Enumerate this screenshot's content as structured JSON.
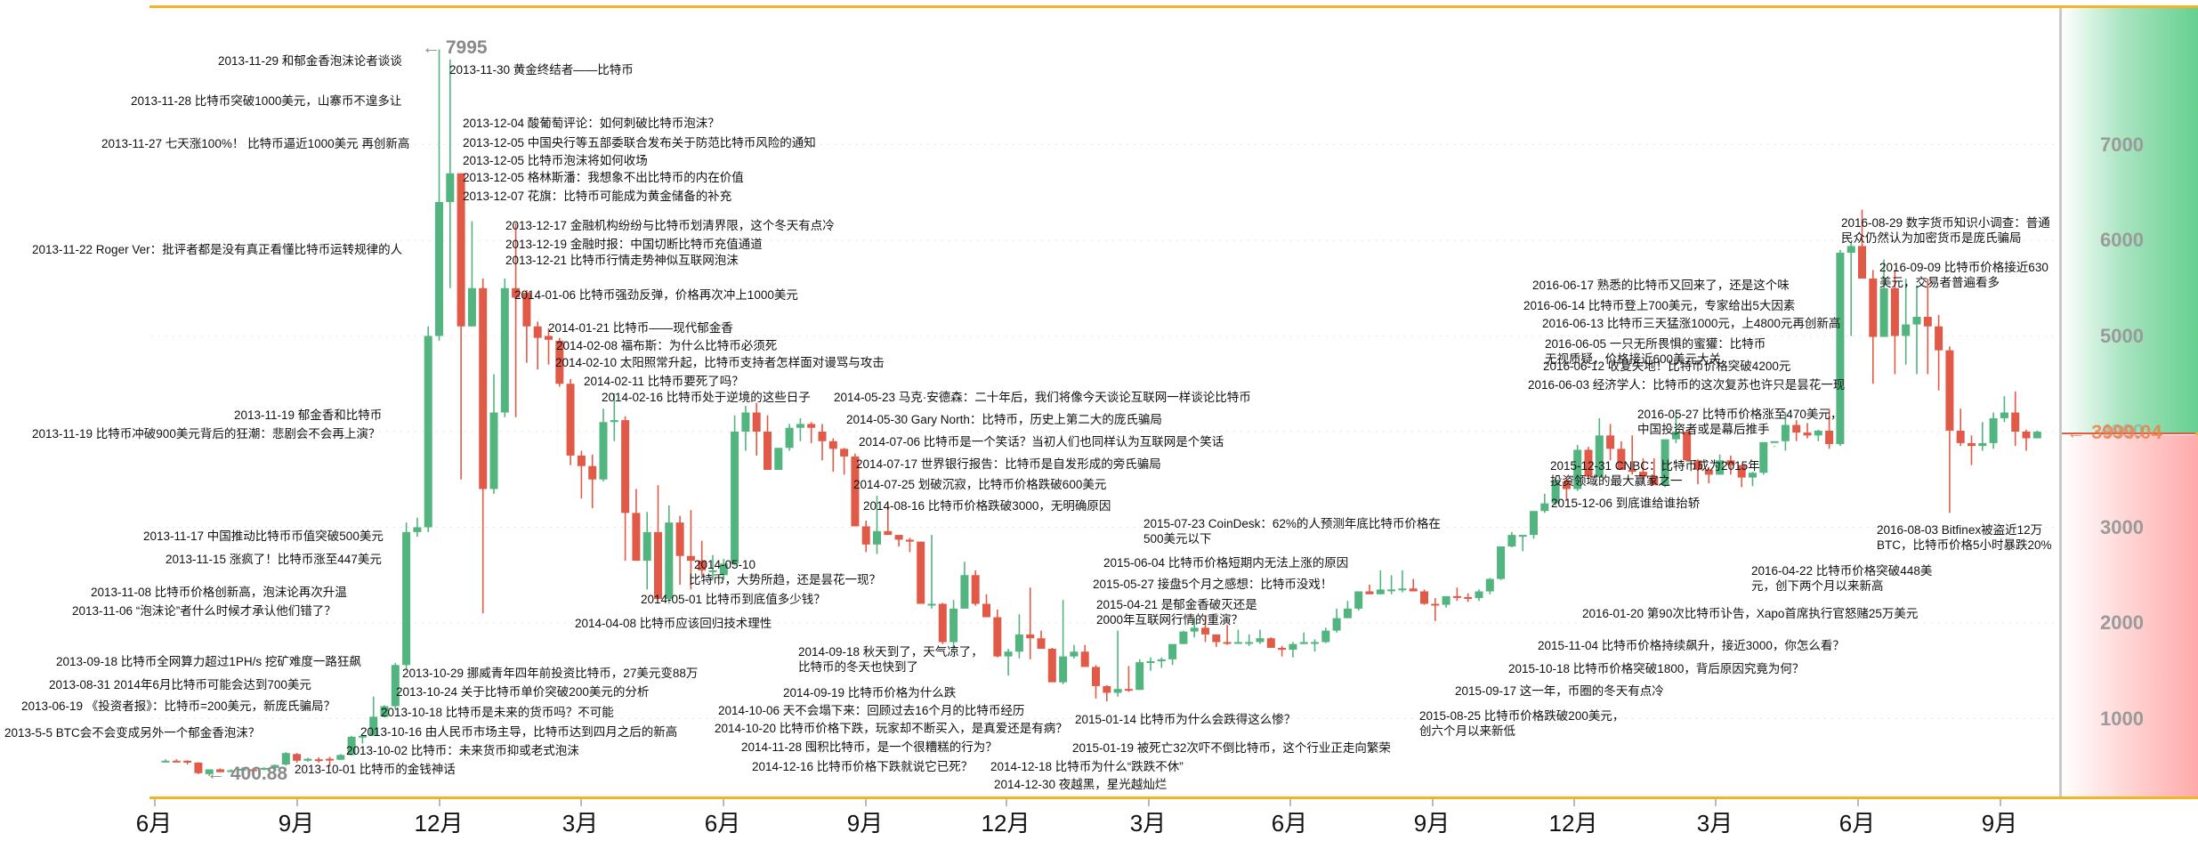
{
  "chart_data": {
    "type": "candlestick",
    "title": "",
    "xlabel": "",
    "ylabel": "",
    "ylim": [
      0,
      8300
    ],
    "yticks": [
      1000,
      2000,
      3000,
      4000,
      5000,
      6000,
      7000
    ],
    "xticks": [
      "6月",
      "9月",
      "12月",
      "3月",
      "6月",
      "9月",
      "12月",
      "3月",
      "6月",
      "9月",
      "12月",
      "3月",
      "6月",
      "9月"
    ],
    "grid": "dotted horizontal",
    "interval": "weekly",
    "max_label": "7995",
    "min_label": "400.88",
    "current_price": "3999.04",
    "colors": {
      "up": "#52b47e",
      "down": "#e05a47",
      "frame": "#f5b324"
    },
    "candles": [
      [
        560,
        575,
        555,
        560
      ],
      [
        560,
        575,
        545,
        550
      ],
      [
        560,
        565,
        520,
        540
      ],
      [
        540,
        545,
        420,
        430
      ],
      [
        420,
        470,
        401,
        470
      ],
      [
        470,
        480,
        440,
        440
      ],
      [
        455,
        470,
        440,
        460
      ],
      [
        460,
        490,
        450,
        475
      ],
      [
        470,
        480,
        460,
        465
      ],
      [
        470,
        490,
        460,
        485
      ],
      [
        485,
        520,
        475,
        515
      ],
      [
        520,
        650,
        510,
        640
      ],
      [
        630,
        640,
        540,
        560
      ],
      [
        560,
        590,
        550,
        580
      ],
      [
        575,
        595,
        540,
        570
      ],
      [
        580,
        600,
        500,
        575
      ],
      [
        570,
        630,
        565,
        620
      ],
      [
        620,
        820,
        615,
        810
      ],
      [
        810,
        830,
        740,
        820
      ],
      [
        820,
        1230,
        820,
        1020
      ],
      [
        1020,
        1140,
        1010,
        1130
      ],
      [
        1130,
        1580,
        1100,
        1560
      ],
      [
        1560,
        3050,
        1520,
        2950
      ],
      [
        2950,
        3100,
        2900,
        3000
      ],
      [
        3000,
        5100,
        2950,
        5000
      ],
      [
        5000,
        7995,
        4950,
        6400
      ],
      [
        6400,
        7890,
        5500,
        6700
      ],
      [
        6700,
        6700,
        3500,
        5100
      ],
      [
        5100,
        6200,
        5100,
        5500
      ],
      [
        5500,
        5600,
        2100,
        3400
      ],
      [
        3400,
        4600,
        3350,
        4200
      ],
      [
        4200,
        5600,
        4150,
        5500
      ],
      [
        5500,
        6180,
        4150,
        5400
      ],
      [
        5450,
        5480,
        4720,
        5100
      ],
      [
        5100,
        5150,
        4650,
        4980
      ],
      [
        5000,
        5080,
        4700,
        4960
      ],
      [
        4950,
        4980,
        4470,
        4500
      ],
      [
        4500,
        4550,
        3650,
        3750
      ],
      [
        3750,
        3800,
        3300,
        3640
      ],
      [
        3640,
        3760,
        3200,
        3500
      ],
      [
        3500,
        4240,
        3480,
        4100
      ],
      [
        4100,
        4400,
        3900,
        4120
      ],
      [
        4120,
        4160,
        2650,
        3150
      ],
      [
        3150,
        3400,
        2950,
        2650
      ],
      [
        2650,
        3160,
        2350,
        2950
      ],
      [
        2950,
        3440,
        2950,
        2250
      ],
      [
        2250,
        3230,
        2200,
        3050
      ],
      [
        3050,
        3120,
        2400,
        2700
      ],
      [
        2700,
        3180,
        2350,
        2650
      ],
      [
        2650,
        2860,
        2500,
        2550
      ],
      [
        2550,
        2710,
        2450,
        2550
      ],
      [
        2500,
        2670,
        2450,
        2620
      ],
      [
        2620,
        4170,
        2600,
        4000
      ],
      [
        4000,
        4270,
        3800,
        4200
      ],
      [
        4200,
        4300,
        3750,
        4000
      ],
      [
        4000,
        4170,
        3700,
        3600
      ],
      [
        3600,
        3830,
        3610,
        3830
      ],
      [
        3830,
        4080,
        3800,
        4040
      ],
      [
        4040,
        4140,
        3900,
        4080
      ],
      [
        4080,
        4100,
        3880,
        4040
      ],
      [
        4000,
        4080,
        3700,
        3900
      ],
      [
        3900,
        3930,
        3580,
        3820
      ],
      [
        3820,
        3830,
        3550,
        3740
      ],
      [
        3740,
        3770,
        3440,
        3010
      ],
      [
        3010,
        3070,
        2740,
        2820
      ],
      [
        2820,
        3330,
        2720,
        2960
      ],
      [
        2960,
        3240,
        2920,
        2920
      ],
      [
        2920,
        2920,
        2800,
        2870
      ],
      [
        2870,
        2890,
        2740,
        2850
      ],
      [
        2850,
        2850,
        2550,
        2200
      ],
      [
        2200,
        2920,
        2150,
        2200
      ],
      [
        2200,
        2210,
        1780,
        1800
      ],
      [
        1800,
        2240,
        1700,
        2150
      ],
      [
        2150,
        2640,
        2200,
        2500
      ],
      [
        2500,
        2550,
        2180,
        2200
      ],
      [
        2200,
        2300,
        2060,
        2060
      ],
      [
        2060,
        2140,
        1640,
        1650
      ],
      [
        1650,
        1730,
        1450,
        1700
      ],
      [
        1700,
        2090,
        1630,
        1880
      ],
      [
        1880,
        2370,
        1620,
        1840
      ],
      [
        1840,
        1920,
        1750,
        1730
      ],
      [
        1730,
        1740,
        1450,
        1380
      ],
      [
        1380,
        2240,
        1360,
        1650
      ],
      [
        1650,
        1770,
        1630,
        1700
      ],
      [
        1700,
        1770,
        1600,
        1540
      ],
      [
        1540,
        1560,
        1210,
        1340
      ],
      [
        1340,
        1350,
        1180,
        1270
      ],
      [
        1270,
        1920,
        1230,
        1310
      ],
      [
        1310,
        1550,
        1280,
        1300
      ],
      [
        1300,
        1620,
        1300,
        1590
      ],
      [
        1590,
        1640,
        1500,
        1600
      ],
      [
        1600,
        1640,
        1530,
        1620
      ],
      [
        1620,
        1760,
        1560,
        1780
      ],
      [
        1780,
        1920,
        1780,
        1910
      ],
      [
        1910,
        2050,
        1850,
        1950
      ],
      [
        1950,
        2080,
        1800,
        1880
      ],
      [
        1880,
        1880,
        1750,
        1800
      ],
      [
        1800,
        1980,
        1770,
        1790
      ],
      [
        1790,
        1930,
        1800,
        1800
      ],
      [
        1800,
        1880,
        1760,
        1800
      ],
      [
        1800,
        1930,
        1780,
        1840
      ],
      [
        1840,
        1850,
        1740,
        1740
      ],
      [
        1740,
        1760,
        1650,
        1720
      ],
      [
        1720,
        1800,
        1640,
        1780
      ],
      [
        1780,
        1900,
        1780,
        1800
      ],
      [
        1800,
        1830,
        1700,
        1800
      ],
      [
        1800,
        1950,
        1790,
        1920
      ],
      [
        1920,
        2150,
        1900,
        2050
      ],
      [
        2050,
        2230,
        2050,
        2150
      ],
      [
        2150,
        2330,
        2130,
        2330
      ],
      [
        2330,
        2400,
        2300,
        2300
      ],
      [
        2300,
        2550,
        2300,
        2350
      ],
      [
        2350,
        2500,
        2300,
        2350
      ],
      [
        2350,
        2550,
        2320,
        2360
      ],
      [
        2360,
        2460,
        2350,
        2330
      ],
      [
        2330,
        2350,
        2190,
        2200
      ],
      [
        2200,
        2260,
        2020,
        2190
      ],
      [
        2190,
        2270,
        2160,
        2280
      ],
      [
        2280,
        2370,
        2230,
        2270
      ],
      [
        2270,
        2310,
        2220,
        2260
      ],
      [
        2260,
        2350,
        2230,
        2330
      ],
      [
        2330,
        2470,
        2300,
        2460
      ],
      [
        2460,
        2800,
        2450,
        2800
      ],
      [
        2800,
        2950,
        2790,
        2920
      ],
      [
        2920,
        2910,
        2750,
        2920
      ],
      [
        2920,
        3100,
        2880,
        3170
      ],
      [
        3170,
        3350,
        3150,
        3250
      ],
      [
        3250,
        3520,
        3230,
        3480
      ],
      [
        3480,
        3530,
        3280,
        3400
      ],
      [
        3400,
        3860,
        3380,
        3810
      ],
      [
        3810,
        3840,
        3540,
        3530
      ],
      [
        3530,
        4140,
        3520,
        3960
      ],
      [
        3960,
        4080,
        3700,
        3820
      ],
      [
        3820,
        3900,
        3700,
        3600
      ],
      [
        3600,
        3960,
        3550,
        3580
      ],
      [
        3580,
        3720,
        3480,
        3530
      ],
      [
        3530,
        3720,
        3480,
        3440
      ],
      [
        3440,
        3870,
        3420,
        3920
      ],
      [
        3920,
        4180,
        3880,
        4000
      ],
      [
        4000,
        4010,
        3860,
        3700
      ],
      [
        3700,
        3710,
        3450,
        3600
      ],
      [
        3600,
        3630,
        3460,
        3550
      ],
      [
        3550,
        3760,
        3550,
        3700
      ],
      [
        3700,
        3750,
        3550,
        3650
      ],
      [
        3650,
        3650,
        3420,
        3520
      ],
      [
        3520,
        3580,
        3430,
        3570
      ],
      [
        3570,
        3890,
        3550,
        3890
      ],
      [
        3890,
        3850,
        3840,
        3900
      ],
      [
        3900,
        4200,
        3800,
        4070
      ],
      [
        4070,
        4120,
        3900,
        3990
      ],
      [
        3990,
        4090,
        3930,
        3960
      ],
      [
        3960,
        4020,
        3900,
        4010
      ],
      [
        4010,
        4240,
        3820,
        3870
      ],
      [
        3870,
        5900,
        3850,
        5870
      ],
      [
        5870,
        5980,
        5000,
        5940
      ],
      [
        5940,
        6320,
        5900,
        5600
      ],
      [
        5600,
        5690,
        4500,
        4990
      ],
      [
        4990,
        5800,
        4990,
        5500
      ],
      [
        5500,
        5690,
        4600,
        5000
      ],
      [
        5000,
        5600,
        4700,
        5120
      ],
      [
        5120,
        5530,
        4600,
        5200
      ],
      [
        5200,
        5600,
        4600,
        5100
      ],
      [
        5100,
        5220,
        4430,
        4850
      ],
      [
        4850,
        4890,
        3150,
        4010
      ],
      [
        4010,
        4240,
        3850,
        3880
      ],
      [
        3880,
        3960,
        3650,
        3850
      ],
      [
        3850,
        4100,
        3800,
        3880
      ],
      [
        3880,
        4200,
        3820,
        4140
      ],
      [
        4140,
        4370,
        4100,
        4200
      ],
      [
        4200,
        4420,
        3850,
        4000
      ],
      [
        4000,
        4020,
        3800,
        3930
      ],
      [
        3930,
        4010,
        3990,
        3999.04
      ]
    ]
  },
  "y_axis": {
    "labels": [
      "7000",
      "6000",
      "5000",
      "4000",
      "3000",
      "2000",
      "1000"
    ],
    "current_price_label": "3999.04"
  },
  "x_axis": {
    "labels": [
      "6月",
      "9月",
      "12月",
      "3月",
      "6月",
      "9月",
      "12月",
      "3月",
      "6月",
      "9月",
      "12月",
      "3月",
      "6月",
      "9月"
    ]
  },
  "extremes": {
    "max": "← 7995",
    "min": "← 400.88"
  },
  "annotations": [
    {
      "date": "2013-11-29",
      "text": "和郁金香泡沫论者谈谈"
    },
    {
      "date": "2013-11-28",
      "text": "比特币突破1000美元，山寨币不遑多让"
    },
    {
      "date": "2013-11-27",
      "text": "七天涨100%！ 比特币逼近1000美元 再创新高"
    },
    {
      "date": "2013-11-22",
      "text": "Roger Ver：批评者都是没有真正看懂比特币运转规律的人"
    },
    {
      "date": "2013-11-19",
      "text": "郁金香和比特币"
    },
    {
      "date": "2013-11-19",
      "text": "比特币冲破900美元背后的狂潮：悲剧会不会再上演？"
    },
    {
      "date": "2013-11-17",
      "text": "中国推动比特币币值突破500美元"
    },
    {
      "date": "2013-11-15",
      "text": "涨疯了！比特币涨至447美元"
    },
    {
      "date": "2013-11-08",
      "text": "比特币价格创新高，泡沫论再次升温"
    },
    {
      "date": "2013-11-06",
      "text": "“泡沫论”者什么时候才承认他们错了？"
    },
    {
      "date": "2013-09-18",
      "text": "比特币全网算力超过1PH/s 挖矿难度一路狂飙"
    },
    {
      "date": "2013-08-31",
      "text": "2014年6月比特币可能会达到700美元"
    },
    {
      "date": "2013-06-19",
      "text": "《投资者报》：比特币=200美元，新庞氏骗局？"
    },
    {
      "date": "2013-5-5",
      "text": "BTC会不会变成另外一个郁金香泡沫？"
    },
    {
      "date": "2013-11-30",
      "text": "黄金终结者——比特币"
    },
    {
      "date": "2013-12-04",
      "text": "酸葡萄评论：如何刺破比特币泡沫？"
    },
    {
      "date": "2013-12-05",
      "text": "中国央行等五部委联合发布关于防范比特币风险的通知"
    },
    {
      "date": "2013-12-05",
      "text": "比特币泡沫将如何收场"
    },
    {
      "date": "2013-12-05",
      "text": "格林斯潘：我想象不出比特币的内在价值"
    },
    {
      "date": "2013-12-07",
      "text": "花旗：比特币可能成为黄金储备的补充"
    },
    {
      "date": "2013-12-17",
      "text": "金融机构纷纷与比特币划清界限，这个冬天有点冷"
    },
    {
      "date": "2013-12-19",
      "text": "金融时报：中国切断比特币充值通道"
    },
    {
      "date": "2013-12-21",
      "text": "比特币行情走势神似互联网泡沫"
    },
    {
      "date": "2014-01-06",
      "text": "比特币强劲反弹，价格再次冲上1000美元"
    },
    {
      "date": "2014-01-21",
      "text": "比特币——现代郁金香"
    },
    {
      "date": "2014-02-08",
      "text": "福布斯：为什么比特币必须死"
    },
    {
      "date": "2014-02-10",
      "text": "太阳照常升起，比特币支持者怎样面对谩骂与攻击"
    },
    {
      "date": "2014-02-11",
      "text": "比特币要死了吗？"
    },
    {
      "date": "2014-02-16",
      "text": "比特币处于逆境的这些日子"
    },
    {
      "date": "2014-05-23",
      "text": "马克·安德森：二十年后，我们将像今天谈论互联网一样谈论比特币"
    },
    {
      "date": "2014-05-30",
      "text": "Gary North：比特币，历史上第二大的庞氏骗局"
    },
    {
      "date": "2014-07-06",
      "text": "比特币是一个笑话？当初人们也同样认为互联网是个笑话"
    },
    {
      "date": "2014-07-17",
      "text": "世界银行报告：比特币是自发形成的旁氏骗局"
    },
    {
      "date": "2014-07-25",
      "text": "划破沉寂，比特币价格跌破600美元"
    },
    {
      "date": "2014-08-16",
      "text": "比特币价格跌破3000，无明确原因"
    },
    {
      "date": "2014-05-10",
      "text": "比特币，大势所趋，还是昙花一现？"
    },
    {
      "date": "2014-05-01",
      "text": "比特币到底值多少钱？"
    },
    {
      "date": "2014-04-08",
      "text": "比特币应该回归技术理性"
    },
    {
      "date": "2013-10-29",
      "text": "挪威青年四年前投资比特币，27美元变88万"
    },
    {
      "date": "2013-10-24",
      "text": "关于比特币单价突破200美元的分析"
    },
    {
      "date": "2013-10-18",
      "text": "比特币是未来的货币吗？不可能"
    },
    {
      "date": "2013-10-16",
      "text": "由人民币市场主导，比特币达到四月之后的新高"
    },
    {
      "date": "2013-10-02",
      "text": "比特币：未来货币抑或老式泡沫"
    },
    {
      "date": "2013-10-01",
      "text": "比特币的金钱神话"
    },
    {
      "date": "2014-09-18",
      "text": "秋天到了，天气凉了，比特币的冬天也快到了"
    },
    {
      "date": "2014-09-19",
      "text": "比特币价格为什么跌"
    },
    {
      "date": "2014-10-06",
      "text": "天不会塌下来：回顾过去16个月的比特币经历"
    },
    {
      "date": "2014-10-20",
      "text": "比特币价格下跌，玩家却不断买入，是真爱还是有病？"
    },
    {
      "date": "2014-11-28",
      "text": "囤积比特币，是一个很糟糕的行为？"
    },
    {
      "date": "2014-12-16",
      "text": "比特币价格下跌就说它已死？"
    },
    {
      "date": "2014-12-18",
      "text": "比特币为什么“跌跌不休”"
    },
    {
      "date": "2014-12-30",
      "text": "夜越黑，星光越灿烂"
    },
    {
      "date": "2015-07-23",
      "text": "CoinDesk：62%的人预测年底比特币价格在500美元以下"
    },
    {
      "date": "2015-06-04",
      "text": "比特币价格短期内无法上涨的原因"
    },
    {
      "date": "2015-05-27",
      "text": "接盘5个月之感想：比特币没戏！"
    },
    {
      "date": "2015-04-21",
      "text": "是郁金香破灭还是2000年互联网行情的重演？"
    },
    {
      "date": "2015-01-14",
      "text": "比特币为什么会跌得这么惨？"
    },
    {
      "date": "2015-01-19",
      "text": "被死亡32次吓不倒比特币，这个行业正走向繁荣"
    },
    {
      "date": "2015-08-25",
      "text": "比特币价格跌破200美元，创六个月以来新低"
    },
    {
      "date": "2015-09-17",
      "text": "这一年，币圈的冬天有点冷"
    },
    {
      "date": "2015-10-18",
      "text": "比特币价格突破1800，背后原因究竟为何？"
    },
    {
      "date": "2015-11-04",
      "text": "比特币价格持续飙升，接近3000，你怎么看？"
    },
    {
      "date": "2016-01-20",
      "text": "第90次比特币讣告，Xapo首席执行官怒赌25万美元"
    },
    {
      "date": "2015-12-31",
      "text": "CNBC：比特币成为2015年投资领域的最大赢家之一"
    },
    {
      "date": "2015-12-06",
      "text": "到底谁给谁抬轿"
    },
    {
      "date": "2016-04-22",
      "text": "比特币价格突破448美元，创下两个月以来新高"
    },
    {
      "date": "2016-05-27",
      "text": "比特币价格涨至470美元，中国投资者或是幕后推手"
    },
    {
      "date": "2016-06-03",
      "text": "经济学人：比特币的这次复苏也许只是昙花一现"
    },
    {
      "date": "2016-06-05",
      "text": "一只无所畏惧的蜜獾：比特币无视质疑，价格接近600美元大关"
    },
    {
      "date": "2016-06-12",
      "text": "收复失地！比特币价格突破4200元"
    },
    {
      "date": "2016-06-13",
      "text": "比特币三天猛涨1000元，上4800元再创新高"
    },
    {
      "date": "2016-06-14",
      "text": "比特币登上700美元，专家给出5大因素"
    },
    {
      "date": "2016-06-17",
      "text": "熟悉的比特币又回来了，还是这个味"
    },
    {
      "date": "2016-08-29",
      "text": "数字货币知识小调查：普通民众仍然认为加密货币是庞氏骗局"
    },
    {
      "date": "2016-09-09",
      "text": "比特币价格接近630美元，交易者普遍看多"
    },
    {
      "date": "2016-08-03",
      "text": "Bitfinex被盗近12万BTC，比特币价格5小时暴跌20%"
    }
  ]
}
